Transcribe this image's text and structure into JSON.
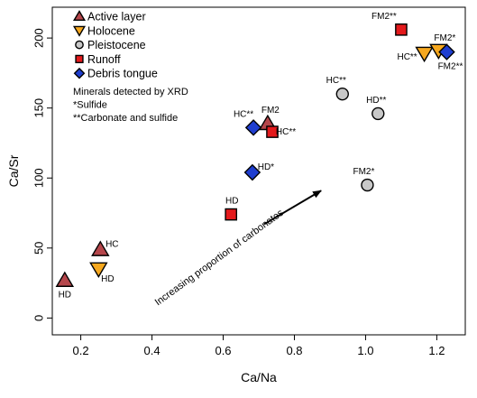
{
  "chart_data": {
    "type": "scatter",
    "xlabel": "Ca/Na",
    "ylabel": "Ca/Sr",
    "xlim": [
      0.12,
      1.28
    ],
    "ylim": [
      -12,
      222
    ],
    "xticks": [
      0.2,
      0.4,
      0.6,
      0.8,
      1.0,
      1.2
    ],
    "xtick_labels": [
      "0.2",
      "0.4",
      "0.6",
      "0.8",
      "1.0",
      "1.2"
    ],
    "yticks": [
      0,
      50,
      100,
      150,
      200
    ],
    "ytick_labels": [
      "0",
      "50",
      "100",
      "150",
      "200"
    ],
    "grid": false,
    "legend_position": "top-left",
    "series": [
      {
        "name": "Active layer",
        "marker": "triangle-up",
        "color": "#b5464b",
        "points": [
          {
            "x": 0.155,
            "y": 27,
            "label": "HD"
          },
          {
            "x": 0.255,
            "y": 49,
            "label": "HC"
          },
          {
            "x": 0.725,
            "y": 139,
            "label": "FM2"
          }
        ]
      },
      {
        "name": "Holocene",
        "marker": "triangle-down",
        "color": "#f6a81f",
        "points": [
          {
            "x": 0.25,
            "y": 35,
            "label": "HD"
          },
          {
            "x": 1.165,
            "y": 189,
            "label": "HC**"
          },
          {
            "x": 1.205,
            "y": 191,
            "label": "FM2*"
          }
        ]
      },
      {
        "name": "Pleistocene",
        "marker": "circle",
        "color": "#c8c8c8",
        "points": [
          {
            "x": 0.935,
            "y": 160,
            "label": "HC**"
          },
          {
            "x": 1.035,
            "y": 146,
            "label": "HD**"
          },
          {
            "x": 1.005,
            "y": 95,
            "label": "FM2*"
          }
        ]
      },
      {
        "name": "Runoff",
        "marker": "square",
        "color": "#e41a1c",
        "points": [
          {
            "x": 1.1,
            "y": 206,
            "label": "FM2**"
          },
          {
            "x": 0.738,
            "y": 133,
            "label": "HC**"
          },
          {
            "x": 0.622,
            "y": 74,
            "label": "HD"
          }
        ]
      },
      {
        "name": "Debris tongue",
        "marker": "diamond",
        "color": "#1f3ecf",
        "points": [
          {
            "x": 0.685,
            "y": 136,
            "label": "HC**"
          },
          {
            "x": 0.682,
            "y": 104,
            "label": "HD*"
          },
          {
            "x": 1.228,
            "y": 190,
            "label": "FM2**"
          }
        ]
      }
    ],
    "legend_notes": [
      "Minerals detected by XRD",
      "*Sulfide",
      "**Carbonate and sulfide"
    ],
    "annotation": {
      "text": "Increasing proportion of carbonates",
      "arrow_from": [
        0.715,
        67
      ],
      "arrow_to": [
        0.875,
        91
      ]
    }
  }
}
